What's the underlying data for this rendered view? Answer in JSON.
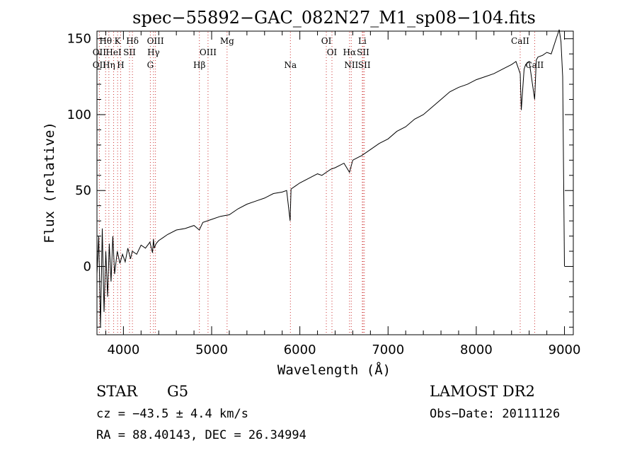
{
  "chart_data": {
    "type": "line",
    "title": "spec−55892−GAC_082N27_M1_sp08−104.fits",
    "xlabel": "Wavelength (Å)",
    "ylabel": "Flux (relative)",
    "xlim": [
      3700,
      9100
    ],
    "ylim": [
      -45,
      155
    ],
    "x_ticks": [
      4000,
      5000,
      6000,
      7000,
      8000,
      9000
    ],
    "y_ticks": [
      0,
      50,
      100,
      150
    ],
    "minor_x_step": 200,
    "minor_y_step": 10,
    "colors": {
      "spectrum": "#000000",
      "line_markers": "#cc3333",
      "axes": "#000000"
    },
    "series": [
      {
        "x": [
          3700,
          3720,
          3740,
          3760,
          3780,
          3800,
          3820,
          3840,
          3860,
          3880,
          3900,
          3930,
          3960,
          3990,
          4020,
          4050,
          4080,
          4100,
          4150,
          4200,
          4250,
          4300,
          4330,
          4340,
          4350,
          4370,
          4400,
          4450,
          4500,
          4600,
          4700,
          4800,
          4860,
          4900,
          5000,
          5100,
          5200,
          5300,
          5400,
          5500,
          5600,
          5700,
          5800,
          5850,
          5890,
          5900,
          5950,
          6000,
          6100,
          6200,
          6250,
          6300,
          6350,
          6400,
          6500,
          6563,
          6600,
          6700,
          6800,
          6900,
          7000,
          7100,
          7200,
          7300,
          7400,
          7500,
          7600,
          7700,
          7800,
          7900,
          8000,
          8100,
          8200,
          8300,
          8400,
          8450,
          8498,
          8510,
          8542,
          8560,
          8600,
          8662,
          8680,
          8700,
          8750,
          8800,
          8850,
          8900,
          8940,
          8960,
          8980,
          9000
        ],
        "y": [
          -5,
          20,
          -40,
          25,
          -30,
          10,
          -20,
          15,
          -10,
          20,
          -5,
          10,
          2,
          8,
          3,
          12,
          5,
          10,
          8,
          14,
          12,
          16,
          9,
          18,
          12,
          15,
          17,
          19,
          21,
          24,
          25,
          27,
          24,
          29,
          31,
          33,
          34,
          38,
          41,
          43,
          45,
          48,
          49,
          50,
          30,
          51,
          53,
          55,
          58,
          61,
          60,
          62,
          64,
          65,
          68,
          62,
          70,
          73,
          77,
          81,
          84,
          89,
          92,
          97,
          100,
          105,
          110,
          115,
          118,
          120,
          123,
          125,
          127,
          130,
          133,
          135,
          127,
          103,
          130,
          133,
          135,
          110,
          136,
          138,
          139,
          141,
          140,
          149,
          156,
          148,
          125,
          0
        ]
      }
    ],
    "spectral_lines": [
      {
        "label": "Hθ",
        "wl": 3798,
        "row": 1
      },
      {
        "label": "K",
        "wl": 3934,
        "row": 1
      },
      {
        "label": "Hδ",
        "wl": 4102,
        "row": 1
      },
      {
        "label": "OIII",
        "wl": 4363,
        "row": 1
      },
      {
        "label": "Mg",
        "wl": 5175,
        "row": 1
      },
      {
        "label": "OI",
        "wl": 6300,
        "row": 1
      },
      {
        "label": "Li",
        "wl": 6708,
        "row": 1
      },
      {
        "label": "CaII",
        "wl": 8498,
        "row": 1
      },
      {
        "label": "OII",
        "wl": 3727,
        "row": 2
      },
      {
        "label": "HeI",
        "wl": 3889,
        "row": 2
      },
      {
        "label": "SII",
        "wl": 4069,
        "row": 2
      },
      {
        "label": "Hγ",
        "wl": 4341,
        "row": 2
      },
      {
        "label": "OIII",
        "wl": 4959,
        "row": 2
      },
      {
        "label": "OI",
        "wl": 6364,
        "row": 2
      },
      {
        "label": "Hα",
        "wl": 6563,
        "row": 2
      },
      {
        "label": "SII",
        "wl": 6717,
        "row": 2
      },
      {
        "label": "OII",
        "wl": 3727,
        "row": 3
      },
      {
        "label": "Hη",
        "wl": 3835,
        "row": 3
      },
      {
        "label": "H",
        "wl": 3969,
        "row": 3
      },
      {
        "label": "G",
        "wl": 4305,
        "row": 3
      },
      {
        "label": "Hβ",
        "wl": 4861,
        "row": 3
      },
      {
        "label": "Na",
        "wl": 5893,
        "row": 3
      },
      {
        "label": "NII",
        "wl": 6583,
        "row": 3
      },
      {
        "label": "SII",
        "wl": 6731,
        "row": 3
      },
      {
        "label": "CaII",
        "wl": 8662,
        "row": 3
      }
    ]
  },
  "info": {
    "object_class": "STAR",
    "subclass": "G5",
    "survey": "LAMOST DR2",
    "redshift": "cz = −43.5 ± 4.4 km/s",
    "obs_date": "Obs−Date: 20111126",
    "coords": "RA =  88.40143, DEC =  26.34994"
  }
}
